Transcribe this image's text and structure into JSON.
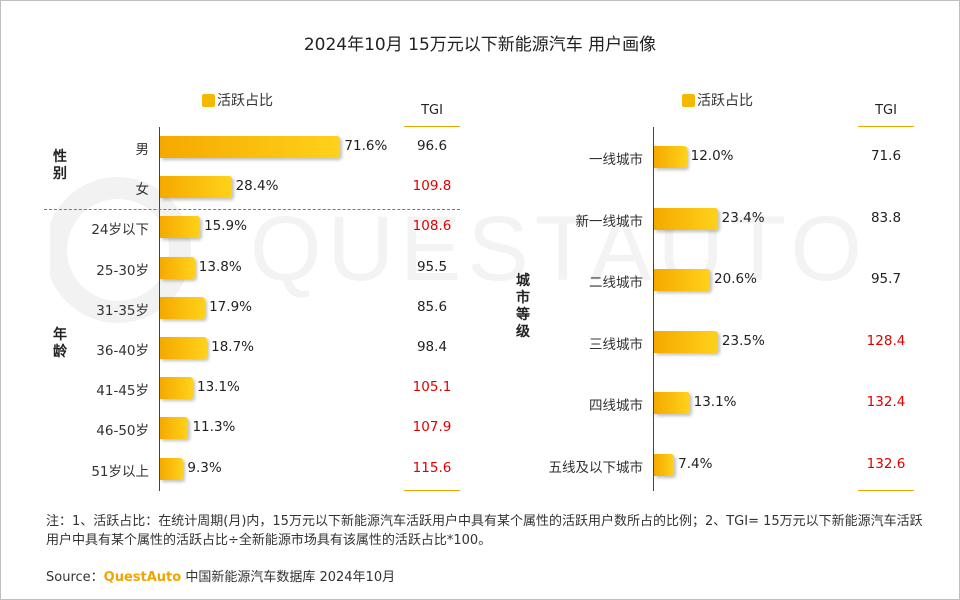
{
  "title": "2024年10月 15万元以下新能源汽车 用户画像",
  "watermark": "QUESTAUTO",
  "note": "注：1、活跃占比：在统计周期(月)内，15万元以下新能源汽车活跃用户中具有某个属性的活跃用户数所占的比例；2、TGI= 15万元以下新能源汽车活跃用户中具有某个属性的活跃占比÷全新能源市场具有该属性的活跃占比*100。",
  "source": {
    "prefix": "Source：",
    "brand": "QuestAuto",
    "text": " 中国新能源汽车数据库 2024年10月"
  },
  "colors": {
    "bar": "#f5b800",
    "highlight": "#e00000"
  },
  "chart_data": [
    {
      "type": "bar",
      "orientation": "horizontal",
      "legend": "活跃占比",
      "tgi_header": "TGI",
      "groups": [
        {
          "name": "性别",
          "categories": [
            "男",
            "女"
          ],
          "values": [
            71.6,
            28.4
          ],
          "value_labels": [
            "71.6%",
            "28.4%"
          ],
          "tgi": [
            "96.6",
            "109.8"
          ],
          "tgi_highlight": [
            false,
            true
          ]
        },
        {
          "name": "年龄",
          "categories": [
            "24岁以下",
            "25-30岁",
            "31-35岁",
            "36-40岁",
            "41-45岁",
            "46-50岁",
            "51岁以上"
          ],
          "values": [
            15.9,
            13.8,
            17.9,
            18.7,
            13.1,
            11.3,
            9.3
          ],
          "value_labels": [
            "15.9%",
            "13.8%",
            "17.9%",
            "18.7%",
            "13.1%",
            "11.3%",
            "9.3%"
          ],
          "tgi": [
            "108.6",
            "95.5",
            "85.6",
            "98.4",
            "105.1",
            "107.9",
            "115.6"
          ],
          "tgi_highlight": [
            true,
            false,
            false,
            false,
            true,
            true,
            true
          ]
        }
      ]
    },
    {
      "type": "bar",
      "orientation": "horizontal",
      "legend": "活跃占比",
      "tgi_header": "TGI",
      "groups": [
        {
          "name": "城市等级",
          "categories": [
            "一线城市",
            "新一线城市",
            "二线城市",
            "三线城市",
            "四线城市",
            "五线及以下城市"
          ],
          "values": [
            12.0,
            23.4,
            20.6,
            23.5,
            13.1,
            7.4
          ],
          "value_labels": [
            "12.0%",
            "23.4%",
            "20.6%",
            "23.5%",
            "13.1%",
            "7.4%"
          ],
          "tgi": [
            "71.6",
            "83.8",
            "95.7",
            "128.4",
            "132.4",
            "132.6"
          ],
          "tgi_highlight": [
            false,
            false,
            false,
            true,
            true,
            true
          ]
        }
      ]
    }
  ]
}
